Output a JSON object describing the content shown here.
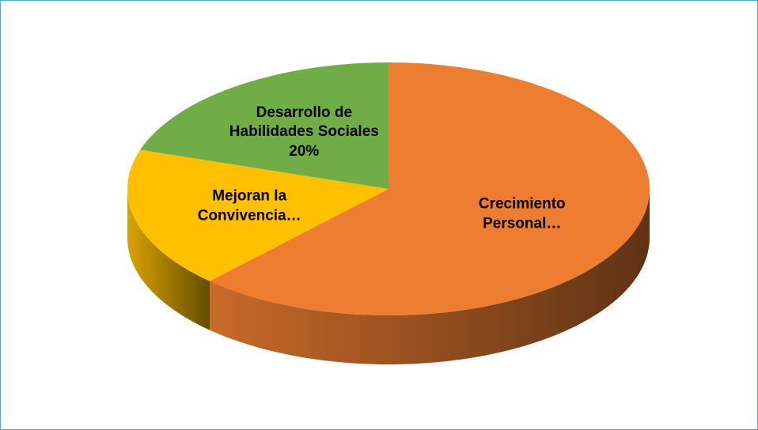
{
  "chart_data": {
    "type": "pie",
    "categories": [
      "Crecimiento Personal…",
      "Mejoran la Convivencia…",
      "Desarrollo de Habilidades Sociales"
    ],
    "values": [
      62,
      18,
      20
    ],
    "value_labels": [
      null,
      null,
      "20%"
    ],
    "colors": [
      "#ED7D31",
      "#FFC000",
      "#70AD47"
    ],
    "three_d": true
  }
}
